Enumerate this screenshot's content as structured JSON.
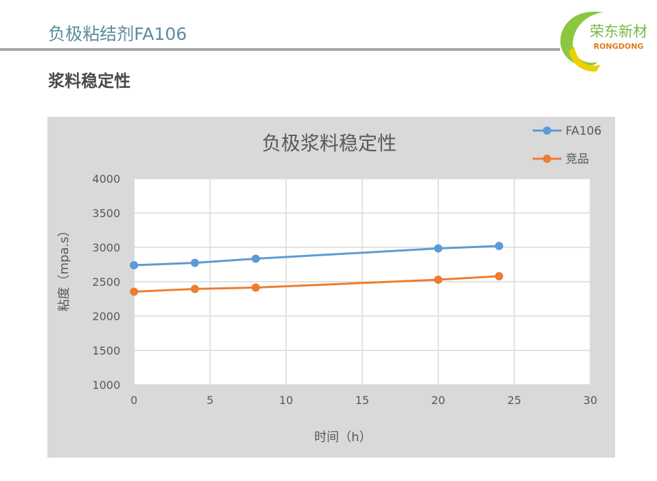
{
  "header": {
    "title": "负极粘结剂FA106",
    "brand_name": "荣东新材",
    "brand_subtitle": "RONGDONG"
  },
  "section": {
    "title": "浆料稳定性"
  },
  "colors": {
    "header_title": "#5b8aa0",
    "logo_green": "#8dc63f",
    "logo_yellow": "#e9d200",
    "series_fa106": "#5b9bd5",
    "series_competitor": "#ed7d31",
    "plot_bg": "#ffffff",
    "chart_bg": "#d9d9d9"
  },
  "chart_data": {
    "type": "line",
    "title": "负极浆料稳定性",
    "xlabel": "时间（h）",
    "ylabel": "粘度（mpa.s）",
    "xlim": [
      0,
      30
    ],
    "ylim": [
      1000,
      4000
    ],
    "xticks": [
      0,
      5,
      10,
      15,
      20,
      25,
      30
    ],
    "yticks": [
      1000,
      1500,
      2000,
      2500,
      3000,
      3500,
      4000
    ],
    "grid": true,
    "legend": "top-right",
    "series": [
      {
        "name": "FA106",
        "color": "#5b9bd5",
        "x": [
          0,
          4,
          8,
          20,
          24
        ],
        "y": [
          2740,
          2775,
          2835,
          2985,
          3020
        ]
      },
      {
        "name": "竞品",
        "color": "#ed7d31",
        "x": [
          0,
          4,
          8,
          20,
          24
        ],
        "y": [
          2355,
          2395,
          2415,
          2530,
          2580
        ]
      }
    ]
  }
}
